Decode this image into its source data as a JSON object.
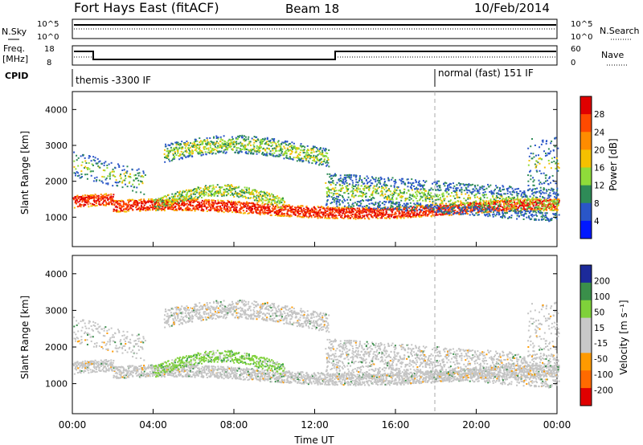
{
  "header": {
    "station": "Fort Hays East (fitACF)",
    "beam": "Beam 18",
    "date": "10/Feb/2014"
  },
  "param_panels": {
    "nsky_label": "N.Sky",
    "nsearch_label": "N.Search",
    "noise_ticks": [
      "10^5",
      "10^0"
    ],
    "freq_label_1": "Freq.",
    "freq_label_2": "[MHz]",
    "freq_ticks": [
      "18",
      "8"
    ],
    "nave_ticks": [
      "60",
      "0"
    ],
    "nave_label": "Nave",
    "cpid_label": "CPID",
    "cpid_mode_1": "themis -3300 IF",
    "cpid_mode_2": "normal (fast) 151 IF"
  },
  "x_axis": {
    "label": "Time UT",
    "ticks": [
      "00:00",
      "04:00",
      "08:00",
      "12:00",
      "16:00",
      "20:00",
      "00:00"
    ],
    "range_hours": [
      0,
      24
    ],
    "mode_change_hour": 18
  },
  "chart_data": [
    {
      "type": "heatmap",
      "ylabel": "Slant Range [km]",
      "yticks": [
        1000,
        2000,
        3000,
        4000
      ],
      "ylim": [
        180,
        4500
      ],
      "colorbar": {
        "label": "Power [dB]",
        "ticks": [
          "28",
          "24",
          "20",
          "16",
          "12",
          "8",
          "4"
        ],
        "colors": [
          "#e00000",
          "#ff4a00",
          "#ff8c00",
          "#f5c000",
          "#8fdc3a",
          "#2e8b57",
          "#2a56c8",
          "#0018ff"
        ]
      },
      "scatter_bands": [
        {
          "feature": "near-range E/F echo",
          "hours": [
            0,
            24
          ],
          "range_km": [
            1000,
            1500
          ]
        },
        {
          "feature": "upper arc",
          "hours": [
            4.5,
            12.5
          ],
          "range_km": [
            2300,
            3200
          ]
        },
        {
          "feature": "lower arc",
          "hours": [
            4.0,
            10.5
          ],
          "range_km": [
            1200,
            1900
          ]
        },
        {
          "feature": "late-day band",
          "hours": [
            12.5,
            24
          ],
          "range_km": [
            1200,
            2500
          ]
        }
      ]
    },
    {
      "type": "heatmap",
      "ylabel": "Slant Range [km]",
      "yticks": [
        1000,
        2000,
        3000,
        4000
      ],
      "ylim": [
        180,
        4500
      ],
      "colorbar": {
        "label": "Velocity [m s⁻¹]",
        "ticks": [
          "200",
          "100",
          "50",
          "15",
          "-15",
          "-50",
          "-100",
          "-200"
        ],
        "colors": [
          "#1c2a9a",
          "#3a8f4a",
          "#7fd13a",
          "#c8c8c8",
          "#c8c8c8",
          "#ff9a00",
          "#ff6a00",
          "#e00000"
        ]
      }
    }
  ],
  "colors": {
    "grey_scatter": "#c4c4c4",
    "dashed_marker": "#aaaaaa"
  }
}
